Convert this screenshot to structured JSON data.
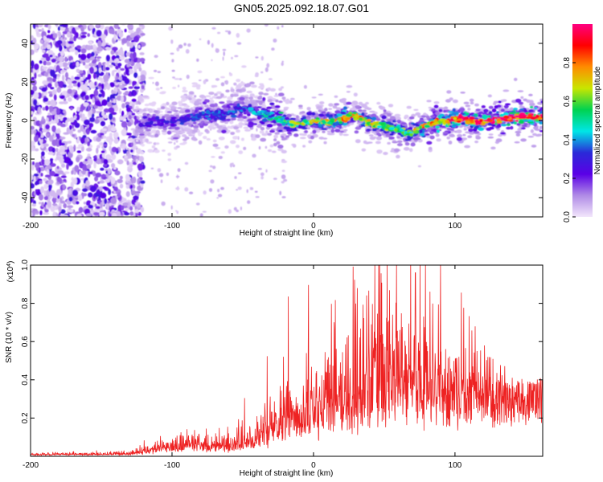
{
  "title": "GN05.2025.092.18.07.G01",
  "chart_data": [
    {
      "type": "heatmap",
      "xlabel": "Height of straight line (km)",
      "ylabel": "Frequency (Hz)",
      "xlim": [
        -200,
        162
      ],
      "ylim": [
        -50,
        50
      ],
      "xticks": [
        -200,
        -100,
        0,
        100
      ],
      "yticks": [
        -40,
        -20,
        0,
        20,
        40
      ],
      "colorbar": {
        "label": "Normalized spectral amplitude",
        "range": [
          0,
          1
        ],
        "ticks": [
          "0.0",
          "0.2",
          "0.4",
          "0.6",
          "0.8"
        ],
        "colors": [
          "#f2e6fb",
          "#b08be6",
          "#5a00e6",
          "#2a2ad8",
          "#00e6e6",
          "#00d250",
          "#c8e600",
          "#ff8c00",
          "#ff0000",
          "#ff0080"
        ]
      },
      "ridge": {
        "x": [
          -125,
          -110,
          -100,
          -90,
          -80,
          -70,
          -60,
          -50,
          -40,
          -30,
          -20,
          -10,
          0,
          10,
          20,
          30,
          40,
          50,
          60,
          68,
          75,
          85,
          95,
          105,
          115,
          125,
          135,
          145,
          155,
          162
        ],
        "y": [
          -2,
          0,
          -1,
          1,
          2,
          3,
          4,
          6,
          4,
          2,
          -1,
          -2,
          0,
          -1,
          1,
          3,
          -2,
          -3,
          -5,
          -7,
          -4,
          -1,
          0,
          1,
          -1,
          0,
          1,
          2,
          2,
          2
        ],
        "amp": [
          0.25,
          0.28,
          0.3,
          0.3,
          0.32,
          0.33,
          0.35,
          0.35,
          0.4,
          0.45,
          0.55,
          0.6,
          0.65,
          0.7,
          0.75,
          0.75,
          0.65,
          0.62,
          0.6,
          0.6,
          0.7,
          0.8,
          0.85,
          0.9,
          0.9,
          0.92,
          0.95,
          0.98,
          1.0,
          1.0
        ]
      },
      "noise_region": [
        -200,
        -120
      ]
    },
    {
      "type": "line",
      "xlabel": "Height of straight line (km)",
      "ylabel": "SNR (10 * v/v)",
      "yunit": "(x10",
      "yunit_exp": "4",
      "yunit_close": ")",
      "xlim": [
        -200,
        162
      ],
      "ylim": [
        0,
        1.0
      ],
      "xticks": [
        -200,
        -100,
        0,
        100
      ],
      "yticks": [
        "0.2",
        "0.4",
        "0.6",
        "0.8",
        "1.0"
      ],
      "color": "#ee2222",
      "envelope": {
        "x": [
          -200,
          -160,
          -130,
          -120,
          -110,
          -100,
          -90,
          -80,
          -70,
          -60,
          -50,
          -40,
          -30,
          -20,
          -10,
          0,
          10,
          20,
          30,
          40,
          50,
          60,
          70,
          80,
          90,
          100,
          110,
          120,
          130,
          140,
          150,
          162
        ],
        "base": [
          0.01,
          0.01,
          0.01,
          0.02,
          0.03,
          0.03,
          0.04,
          0.05,
          0.04,
          0.04,
          0.05,
          0.07,
          0.1,
          0.13,
          0.14,
          0.16,
          0.18,
          0.2,
          0.22,
          0.24,
          0.26,
          0.26,
          0.27,
          0.28,
          0.28,
          0.3,
          0.32,
          0.34,
          0.36,
          0.37,
          0.38,
          0.38
        ],
        "spread": [
          0.01,
          0.01,
          0.02,
          0.05,
          0.07,
          0.08,
          0.1,
          0.12,
          0.1,
          0.08,
          0.15,
          0.2,
          0.25,
          0.35,
          0.4,
          0.45,
          0.55,
          0.6,
          0.65,
          0.75,
          0.85,
          0.8,
          0.75,
          0.65,
          0.55,
          0.5,
          0.42,
          0.3,
          0.2,
          0.1,
          0.08,
          0.06
        ]
      },
      "peaks": [
        {
          "x": 52,
          "y": 1.0
        },
        {
          "x": 72,
          "y": 0.96
        },
        {
          "x": 31,
          "y": 0.88
        }
      ]
    }
  ]
}
